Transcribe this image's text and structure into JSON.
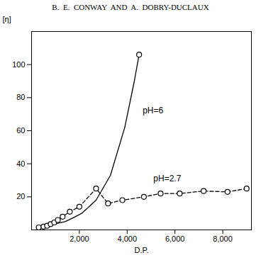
{
  "chart_data": {
    "type": "line",
    "title": "B.  E.  CONWAY  AND  A.  DOBRY-DUCLAUX",
    "xlabel": "D.P.",
    "ylabel": "[η]",
    "xlim": [
      0,
      9200
    ],
    "ylim": [
      0,
      120
    ],
    "xticks": [
      2000,
      4000,
      6000,
      8000
    ],
    "yticks": [
      20,
      40,
      60,
      80,
      100
    ],
    "color": "#000000",
    "series": [
      {
        "x": [
          300,
          500,
          700,
          900,
          1100,
          1400,
          1700,
          2100,
          2700,
          3300,
          3900,
          4300,
          4500
        ],
        "values": [
          1.5,
          2.0,
          2.5,
          3.0,
          4.0,
          5.0,
          7.0,
          10.0,
          18.0,
          33.0,
          62.0,
          90.0,
          106.0
        ],
        "line_style": "solid",
        "marker": "end_circle",
        "color": "#000000"
      },
      {
        "x": [
          300,
          500,
          650,
          800,
          950,
          1100,
          1300,
          1600,
          2000,
          2700,
          3200,
          3800,
          4700,
          5400,
          6200,
          7200,
          8200,
          9000
        ],
        "values": [
          1.5,
          2.0,
          2.5,
          3.5,
          4.5,
          6.0,
          8.0,
          11.0,
          14.0,
          25.0,
          16.0,
          18.0,
          20.0,
          22.0,
          22.0,
          23.5,
          23.0,
          25.0
        ],
        "line_style": "dashed",
        "marker": "circle",
        "color": "#000000"
      }
    ],
    "annotations": [
      {
        "text": "pH=6",
        "x": 4650,
        "y": 72
      },
      {
        "text": "pH=2.7",
        "x": 5100,
        "y": 31
      }
    ]
  }
}
